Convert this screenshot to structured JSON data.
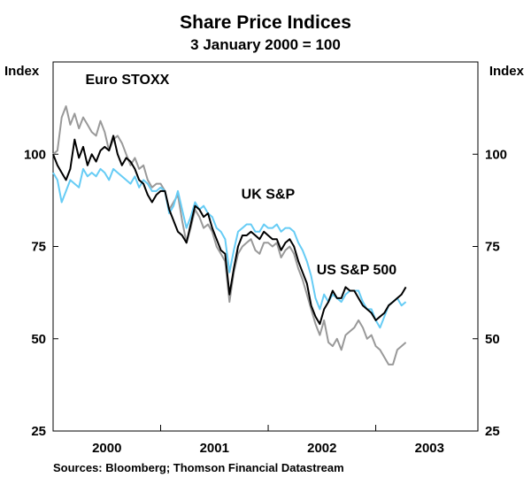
{
  "chart_data": {
    "type": "line",
    "title": "Share Price Indices",
    "subtitle": "3 January 2000 = 100",
    "ylabel_left": "Index",
    "ylabel_right": "Index",
    "ylim": [
      25,
      125
    ],
    "y_ticks": [
      25,
      50,
      75,
      100
    ],
    "x_range": [
      2000.0,
      2003.95
    ],
    "x_tick_labels": [
      {
        "label": "2000",
        "at": 2000.5
      },
      {
        "label": "2001",
        "at": 2001.5
      },
      {
        "label": "2002",
        "at": 2002.5
      },
      {
        "label": "2003",
        "at": 2003.5
      }
    ],
    "series": [
      {
        "name": "Euro STOXX",
        "color": "#999999",
        "x": [
          2000.0,
          2000.04,
          2000.08,
          2000.12,
          2000.16,
          2000.2,
          2000.24,
          2000.28,
          2000.32,
          2000.36,
          2000.4,
          2000.44,
          2000.48,
          2000.52,
          2000.56,
          2000.6,
          2000.64,
          2000.68,
          2000.72,
          2000.76,
          2000.8,
          2000.84,
          2000.88,
          2000.92,
          2000.96,
          2001.0,
          2001.04,
          2001.08,
          2001.12,
          2001.16,
          2001.2,
          2001.24,
          2001.28,
          2001.32,
          2001.36,
          2001.4,
          2001.44,
          2001.48,
          2001.52,
          2001.56,
          2001.6,
          2001.64,
          2001.68,
          2001.72,
          2001.76,
          2001.8,
          2001.84,
          2001.88,
          2001.92,
          2001.96,
          2002.0,
          2002.04,
          2002.08,
          2002.12,
          2002.16,
          2002.2,
          2002.24,
          2002.28,
          2002.32,
          2002.36,
          2002.4,
          2002.44,
          2002.48,
          2002.52,
          2002.56,
          2002.6,
          2002.64,
          2002.68,
          2002.72,
          2002.76,
          2002.8,
          2002.84,
          2002.88,
          2002.92,
          2002.96,
          2003.0,
          2003.04,
          2003.08,
          2003.12,
          2003.16,
          2003.2,
          2003.24,
          2003.28
        ],
        "values": [
          100,
          101,
          110,
          113,
          108,
          111,
          107,
          110,
          108,
          106,
          105,
          109,
          106,
          101,
          104,
          105,
          103,
          100,
          97,
          99,
          96,
          97,
          93,
          91,
          92,
          92,
          90,
          85,
          87,
          89,
          82,
          76,
          80,
          85,
          83,
          80,
          81,
          79,
          75,
          73,
          71,
          60,
          68,
          73,
          75,
          76,
          77,
          74,
          73,
          76,
          76,
          75,
          76,
          72,
          74,
          75,
          73,
          69,
          66,
          62,
          58,
          54,
          51,
          55,
          49,
          48,
          50,
          47,
          51,
          52,
          53,
          55,
          53,
          50,
          51,
          48,
          47,
          45,
          43,
          43,
          47,
          48,
          49
        ]
      },
      {
        "name": "UK S&P",
        "color": "#66CCF5",
        "x": [
          2000.0,
          2000.04,
          2000.08,
          2000.12,
          2000.16,
          2000.2,
          2000.24,
          2000.28,
          2000.32,
          2000.36,
          2000.4,
          2000.44,
          2000.48,
          2000.52,
          2000.56,
          2000.6,
          2000.64,
          2000.68,
          2000.72,
          2000.76,
          2000.8,
          2000.84,
          2000.88,
          2000.92,
          2000.96,
          2001.0,
          2001.04,
          2001.08,
          2001.12,
          2001.16,
          2001.2,
          2001.24,
          2001.28,
          2001.32,
          2001.36,
          2001.4,
          2001.44,
          2001.48,
          2001.52,
          2001.56,
          2001.6,
          2001.64,
          2001.68,
          2001.72,
          2001.76,
          2001.8,
          2001.84,
          2001.88,
          2001.92,
          2001.96,
          2002.0,
          2002.04,
          2002.08,
          2002.12,
          2002.16,
          2002.2,
          2002.24,
          2002.28,
          2002.32,
          2002.36,
          2002.4,
          2002.44,
          2002.48,
          2002.52,
          2002.56,
          2002.6,
          2002.64,
          2002.68,
          2002.72,
          2002.76,
          2002.8,
          2002.84,
          2002.88,
          2002.92,
          2002.96,
          2003.0,
          2003.04,
          2003.08,
          2003.12,
          2003.16,
          2003.2,
          2003.24,
          2003.28
        ],
        "values": [
          95,
          93,
          87,
          90,
          93,
          92,
          91,
          96,
          94,
          95,
          94,
          96,
          95,
          93,
          96,
          95,
          94,
          93,
          92,
          94,
          91,
          93,
          92,
          90,
          90,
          91,
          90,
          84,
          86,
          90,
          85,
          80,
          83,
          87,
          85,
          86,
          84,
          83,
          80,
          79,
          77,
          68,
          74,
          79,
          80,
          81,
          81,
          79,
          79,
          81,
          80,
          80,
          81,
          79,
          80,
          80,
          79,
          76,
          74,
          71,
          67,
          61,
          58,
          62,
          60,
          62,
          61,
          60,
          62,
          63,
          63,
          63,
          60,
          58,
          58,
          55,
          53,
          56,
          59,
          60,
          61,
          59,
          60
        ]
      },
      {
        "name": "US S&P 500",
        "color": "#000000",
        "x": [
          2000.0,
          2000.04,
          2000.08,
          2000.12,
          2000.16,
          2000.2,
          2000.24,
          2000.28,
          2000.32,
          2000.36,
          2000.4,
          2000.44,
          2000.48,
          2000.52,
          2000.56,
          2000.6,
          2000.64,
          2000.68,
          2000.72,
          2000.76,
          2000.8,
          2000.84,
          2000.88,
          2000.92,
          2000.96,
          2001.0,
          2001.04,
          2001.08,
          2001.12,
          2001.16,
          2001.2,
          2001.24,
          2001.28,
          2001.32,
          2001.36,
          2001.4,
          2001.44,
          2001.48,
          2001.52,
          2001.56,
          2001.6,
          2001.64,
          2001.68,
          2001.72,
          2001.76,
          2001.8,
          2001.84,
          2001.88,
          2001.92,
          2001.96,
          2002.0,
          2002.04,
          2002.08,
          2002.12,
          2002.16,
          2002.2,
          2002.24,
          2002.28,
          2002.32,
          2002.36,
          2002.4,
          2002.44,
          2002.48,
          2002.52,
          2002.56,
          2002.6,
          2002.64,
          2002.68,
          2002.72,
          2002.76,
          2002.8,
          2002.84,
          2002.88,
          2002.92,
          2002.96,
          2003.0,
          2003.04,
          2003.08,
          2003.12,
          2003.16,
          2003.2,
          2003.24,
          2003.28
        ],
        "values": [
          100,
          97,
          95,
          93,
          96,
          104,
          99,
          102,
          97,
          100,
          98,
          101,
          102,
          101,
          105,
          100,
          97,
          99,
          98,
          96,
          93,
          92,
          89,
          87,
          89,
          90,
          90,
          85,
          82,
          79,
          78,
          76,
          81,
          86,
          85,
          83,
          84,
          80,
          77,
          74,
          73,
          62,
          69,
          75,
          78,
          78,
          79,
          78,
          77,
          79,
          78,
          77,
          77,
          74,
          76,
          77,
          75,
          71,
          68,
          65,
          59,
          56,
          54,
          58,
          60,
          63,
          61,
          61,
          64,
          63,
          63,
          61,
          59,
          58,
          57,
          55,
          56,
          57,
          59,
          60,
          61,
          62,
          64
        ]
      }
    ],
    "annotations": [
      "Euro STOXX",
      "UK S&P",
      "US S&P 500"
    ],
    "source": "Sources: Bloomberg; Thomson Financial Datastream"
  }
}
